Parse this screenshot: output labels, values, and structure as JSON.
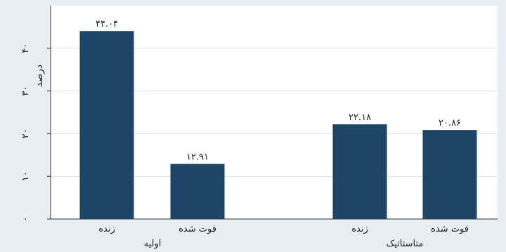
{
  "chart_data": {
    "type": "bar",
    "ylabel": "درصد",
    "ylim": [
      0,
      50
    ],
    "yticks": [
      {
        "value": 0,
        "label": "۰"
      },
      {
        "value": 10,
        "label": "۱۰"
      },
      {
        "value": 20,
        "label": "۲۰"
      },
      {
        "value": 30,
        "label": "۳۰"
      },
      {
        "value": 40,
        "label": "۴۰"
      }
    ],
    "grid": true,
    "bar_color": "#1e4468",
    "plot_background": "#ffffff",
    "page_background": "#e9eef2",
    "groups": [
      {
        "label": "اولیه",
        "bars": [
          {
            "category": "زنده",
            "value": 44.04,
            "value_label": "۴۴.۰۴"
          },
          {
            "category": "فوت شده",
            "value": 12.91,
            "value_label": "۱۲.۹۱"
          }
        ]
      },
      {
        "label": "متاستاتیک",
        "bars": [
          {
            "category": "زنده",
            "value": 22.18,
            "value_label": "۲۲.۱۸"
          },
          {
            "category": "فوت شده",
            "value": 20.86,
            "value_label": "۲۰.۸۶"
          }
        ]
      }
    ]
  }
}
